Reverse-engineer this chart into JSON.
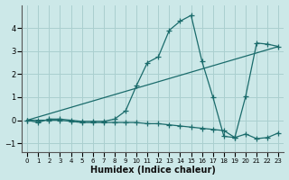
{
  "xlabel": "Humidex (Indice chaleur)",
  "bg_color": "#cce8e8",
  "grid_color": "#aacfcf",
  "line_color": "#1a6b6b",
  "xlim": [
    -0.5,
    23.5
  ],
  "ylim": [
    -1.4,
    5.0
  ],
  "xticks": [
    0,
    1,
    2,
    3,
    4,
    5,
    6,
    7,
    8,
    9,
    10,
    11,
    12,
    13,
    14,
    15,
    16,
    17,
    18,
    19,
    20,
    21,
    22,
    23
  ],
  "yticks": [
    -1,
    0,
    1,
    2,
    3,
    4
  ],
  "series": [
    {
      "x": [
        0,
        1,
        2,
        3,
        4,
        5,
        6,
        7,
        8,
        9,
        10,
        11,
        12,
        13,
        14,
        15,
        16,
        17,
        18,
        19,
        20,
        21,
        22,
        23
      ],
      "y": [
        0.0,
        -0.1,
        0.05,
        0.05,
        -0.0,
        -0.05,
        -0.05,
        -0.05,
        0.05,
        0.4,
        1.5,
        2.5,
        2.75,
        3.9,
        4.3,
        4.55,
        2.55,
        1.0,
        -0.7,
        -0.75,
        1.05,
        3.35,
        3.3,
        3.2
      ]
    },
    {
      "x": [
        0,
        1,
        2,
        3,
        4,
        5,
        6,
        7,
        8,
        9,
        10,
        11,
        12,
        13,
        14,
        15,
        16,
        17,
        18,
        19,
        20,
        21,
        22,
        23
      ],
      "y": [
        0.0,
        0.0,
        0.0,
        0.0,
        -0.05,
        -0.1,
        -0.1,
        -0.1,
        -0.1,
        -0.1,
        -0.1,
        -0.15,
        -0.15,
        -0.2,
        -0.25,
        -0.3,
        -0.35,
        -0.4,
        -0.45,
        -0.75,
        -0.6,
        -0.8,
        -0.75,
        -0.55
      ]
    },
    {
      "x": [
        0,
        23
      ],
      "y": [
        0.0,
        3.2
      ]
    }
  ]
}
